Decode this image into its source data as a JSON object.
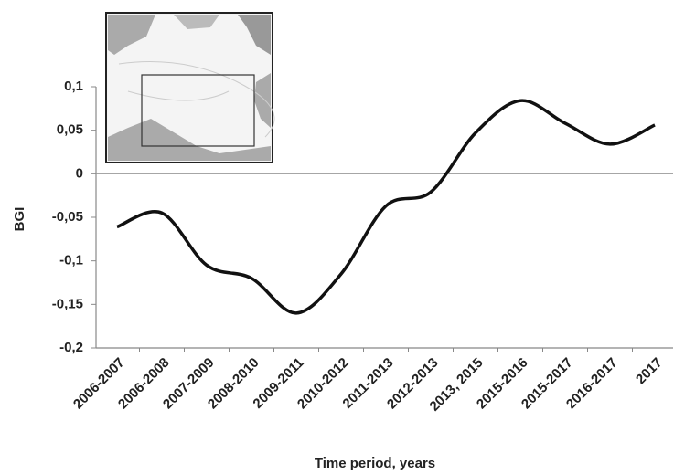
{
  "chart_data": {
    "type": "line",
    "y_label": "BGI",
    "x_label": "Time period, years",
    "categories": [
      "2006-2007",
      "2006-2008",
      "2007-2009",
      "2008-2010",
      "2009-2011",
      "2010-2012",
      "2011-2013",
      "2012-2013",
      "2013, 2015",
      "2015-2016",
      "2015-2017",
      "2016-2017",
      "2017"
    ],
    "values": [
      -0.061,
      -0.045,
      -0.105,
      -0.12,
      -0.16,
      -0.115,
      -0.037,
      -0.021,
      0.047,
      0.084,
      0.058,
      0.034,
      0.056
    ],
    "color": "#111111",
    "ylim": [
      -0.2,
      0.1
    ],
    "yticks": [
      {
        "value": 0.1,
        "label": "0,1"
      },
      {
        "value": 0.05,
        "label": "0,05"
      },
      0,
      {
        "value": -0.05,
        "label": "-0,05"
      },
      {
        "value": -0.1,
        "label": "-0,1"
      },
      {
        "value": -0.15,
        "label": "-0,15"
      },
      {
        "value": -0.2,
        "label": "-0,2"
      }
    ]
  }
}
